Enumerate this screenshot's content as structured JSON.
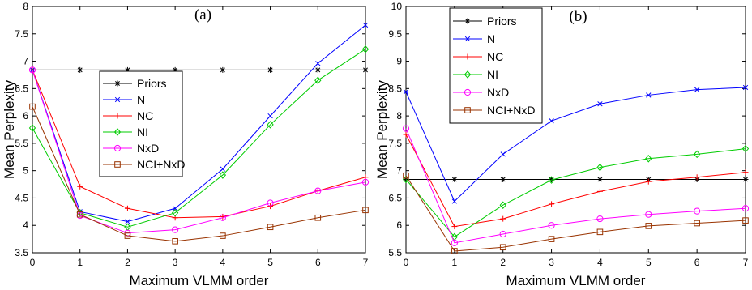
{
  "chart_data": [
    {
      "type": "line",
      "title": "(a)",
      "xlabel": "Maximum VLMM order",
      "ylabel": "Mean Perplexity",
      "x": [
        0,
        1,
        2,
        3,
        4,
        5,
        6,
        7
      ],
      "xlim": [
        0,
        7
      ],
      "ylim": [
        3.5,
        8
      ],
      "xticks": [
        "0",
        "1",
        "2",
        "3",
        "4",
        "5",
        "6",
        "7"
      ],
      "yticks": [
        "3.5",
        "4",
        "4.5",
        "5",
        "5.5",
        "6",
        "6.5",
        "7",
        "7.5",
        "8"
      ],
      "grid": false,
      "legend_position": "center",
      "series": [
        {
          "name": "Priors",
          "color": "#000000",
          "marker": "asterisk",
          "values": [
            6.84,
            6.84,
            6.84,
            6.84,
            6.84,
            6.84,
            6.84,
            6.84
          ]
        },
        {
          "name": "N",
          "color": "#0000ff",
          "marker": "x",
          "values": [
            6.84,
            4.25,
            4.07,
            4.31,
            5.03,
            6.0,
            6.96,
            7.66
          ]
        },
        {
          "name": "NC",
          "color": "#ff0000",
          "marker": "plus",
          "values": [
            6.84,
            4.71,
            4.31,
            4.14,
            4.16,
            4.35,
            4.63,
            4.88
          ]
        },
        {
          "name": "NI",
          "color": "#00cc00",
          "marker": "diamond",
          "values": [
            5.78,
            4.23,
            3.97,
            4.23,
            4.92,
            5.84,
            6.65,
            7.22
          ]
        },
        {
          "name": "NxD",
          "color": "#ff00ff",
          "marker": "circle",
          "values": [
            6.84,
            4.18,
            3.86,
            3.92,
            4.14,
            4.41,
            4.63,
            4.79
          ]
        },
        {
          "name": "NCI+NxD",
          "color": "#993300",
          "marker": "square",
          "values": [
            6.17,
            4.2,
            3.81,
            3.71,
            3.81,
            3.97,
            4.14,
            4.28
          ]
        }
      ]
    },
    {
      "type": "line",
      "title": "(b)",
      "xlabel": "Maximum VLMM order",
      "ylabel": "Mean Perplexity",
      "x": [
        0,
        1,
        2,
        3,
        4,
        5,
        6,
        7
      ],
      "xlim": [
        0,
        7
      ],
      "ylim": [
        5.5,
        10
      ],
      "xticks": [
        "0",
        "1",
        "2",
        "3",
        "4",
        "5",
        "6",
        "7"
      ],
      "yticks": [
        "5.5",
        "6",
        "6.5",
        "7",
        "7.5",
        "8",
        "8.5",
        "9",
        "9.5",
        "10"
      ],
      "grid": false,
      "legend_position": "top-left",
      "series": [
        {
          "name": "Priors",
          "color": "#000000",
          "marker": "asterisk",
          "values": [
            6.84,
            6.84,
            6.84,
            6.84,
            6.84,
            6.84,
            6.84,
            6.84
          ]
        },
        {
          "name": "N",
          "color": "#0000ff",
          "marker": "x",
          "values": [
            8.44,
            6.44,
            7.3,
            7.91,
            8.22,
            8.38,
            8.48,
            8.52
          ]
        },
        {
          "name": "NC",
          "color": "#ff0000",
          "marker": "plus",
          "values": [
            7.66,
            5.98,
            6.12,
            6.39,
            6.62,
            6.8,
            6.88,
            6.97
          ]
        },
        {
          "name": "NI",
          "color": "#00cc00",
          "marker": "diamond",
          "values": [
            6.84,
            5.79,
            6.37,
            6.83,
            7.06,
            7.22,
            7.3,
            7.4
          ]
        },
        {
          "name": "NxD",
          "color": "#ff00ff",
          "marker": "circle",
          "values": [
            7.77,
            5.68,
            5.84,
            6.0,
            6.12,
            6.2,
            6.26,
            6.31
          ]
        },
        {
          "name": "NCI+NxD",
          "color": "#993300",
          "marker": "square",
          "values": [
            6.91,
            5.53,
            5.6,
            5.75,
            5.88,
            5.99,
            6.04,
            6.09
          ]
        }
      ]
    }
  ]
}
